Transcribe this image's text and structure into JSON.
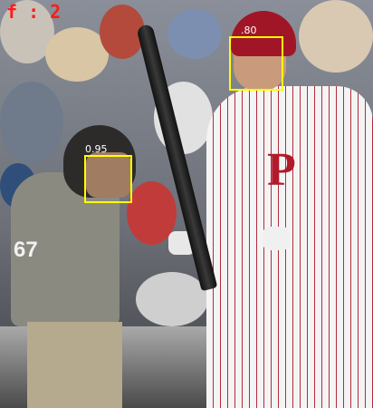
{
  "overlay": {
    "face_count_text": "f : 2",
    "box_color": "#ffff00",
    "counter_color": "#ff1a1a"
  },
  "detections": [
    {
      "label": "0.95",
      "subject": "umpire face"
    },
    {
      "label": ".80",
      "subject": "batter face"
    }
  ],
  "scene": {
    "uniform_number": "67",
    "team_logo_letter": "P"
  }
}
